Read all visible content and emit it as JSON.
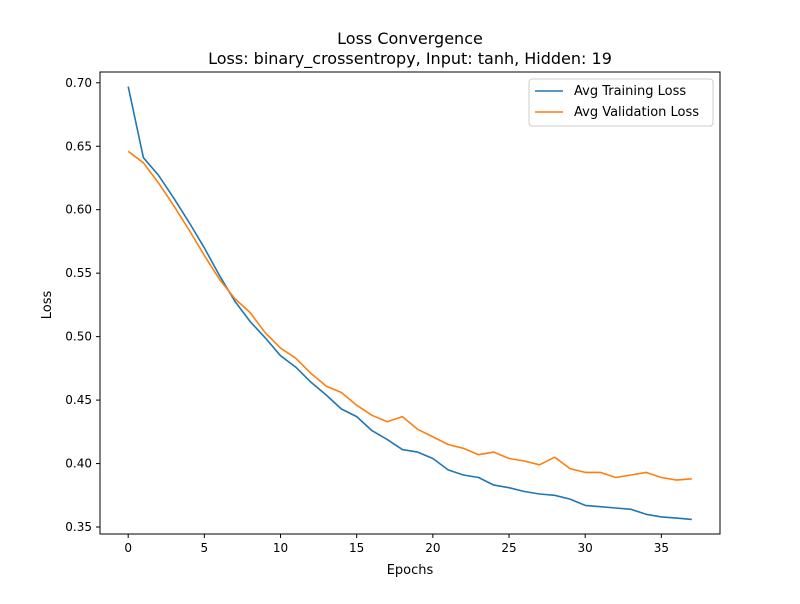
{
  "chart_data": {
    "type": "line",
    "title": "Loss Convergence",
    "subtitle": "Loss: binary_crossentropy, Input: tanh, Hidden: 19",
    "xlabel": "Epochs",
    "ylabel": "Loss",
    "xlim": [
      -1.85,
      38.85
    ],
    "ylim": [
      0.3445,
      0.7085
    ],
    "xticks": [
      0,
      5,
      10,
      15,
      20,
      25,
      30,
      35
    ],
    "xtick_labels": [
      "0",
      "5",
      "10",
      "15",
      "20",
      "25",
      "30",
      "35"
    ],
    "yticks": [
      0.35,
      0.4,
      0.45,
      0.5,
      0.55,
      0.6,
      0.65,
      0.7
    ],
    "ytick_labels": [
      "0.35",
      "0.40",
      "0.45",
      "0.50",
      "0.55",
      "0.60",
      "0.65",
      "0.70"
    ],
    "grid": false,
    "legend_position": "top-right",
    "x": [
      0,
      1,
      2,
      3,
      4,
      5,
      6,
      7,
      8,
      9,
      10,
      11,
      12,
      13,
      14,
      15,
      16,
      17,
      18,
      19,
      20,
      21,
      22,
      23,
      24,
      25,
      26,
      27,
      28,
      29,
      30,
      31,
      32,
      33,
      34,
      35,
      36,
      37
    ],
    "series": [
      {
        "name": "Avg Training Loss",
        "color": "#1f77b4",
        "values": [
          0.697,
          0.641,
          0.627,
          0.609,
          0.59,
          0.57,
          0.548,
          0.528,
          0.512,
          0.499,
          0.485,
          0.476,
          0.464,
          0.454,
          0.443,
          0.437,
          0.426,
          0.419,
          0.411,
          0.409,
          0.404,
          0.395,
          0.391,
          0.389,
          0.383,
          0.381,
          0.378,
          0.376,
          0.375,
          0.372,
          0.367,
          0.366,
          0.365,
          0.364,
          0.36,
          0.358,
          0.357,
          0.356
        ]
      },
      {
        "name": "Avg Validation Loss",
        "color": "#ff7f0e",
        "values": [
          0.646,
          0.637,
          0.621,
          0.603,
          0.584,
          0.564,
          0.545,
          0.53,
          0.519,
          0.503,
          0.491,
          0.483,
          0.471,
          0.461,
          0.456,
          0.446,
          0.438,
          0.433,
          0.437,
          0.427,
          0.421,
          0.415,
          0.412,
          0.407,
          0.409,
          0.404,
          0.402,
          0.399,
          0.405,
          0.396,
          0.393,
          0.393,
          0.389,
          0.391,
          0.393,
          0.389,
          0.387,
          0.388
        ]
      }
    ]
  }
}
